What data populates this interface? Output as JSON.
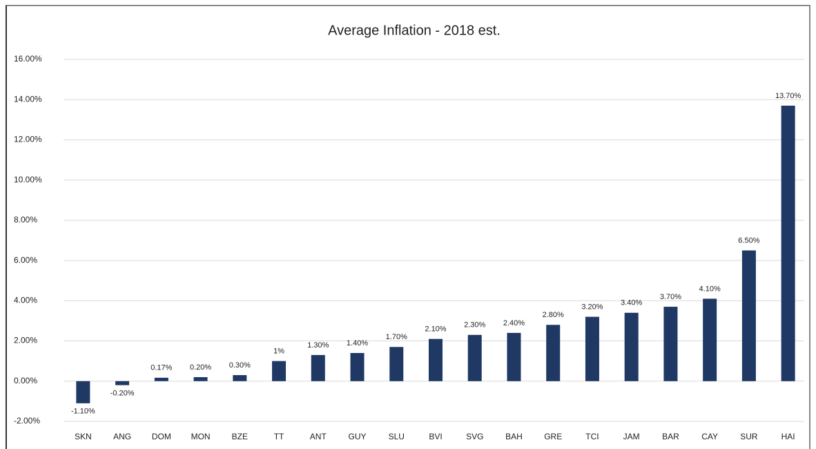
{
  "chart_data": {
    "type": "bar",
    "title": "Average Inflation - 2018 est.",
    "categories": [
      "SKN",
      "ANG",
      "DOM",
      "MON",
      "BZE",
      "TT",
      "ANT",
      "GUY",
      "SLU",
      "BVI",
      "SVG",
      "BAH",
      "GRE",
      "TCI",
      "JAM",
      "BAR",
      "CAY",
      "SUR",
      "HAI"
    ],
    "values": [
      -1.1,
      -0.2,
      0.17,
      0.2,
      0.3,
      1,
      1.3,
      1.4,
      1.7,
      2.1,
      2.3,
      2.4,
      2.8,
      3.2,
      3.4,
      3.7,
      4.1,
      6.5,
      13.7
    ],
    "value_labels": [
      "-1.10%",
      "-0.20%",
      "0.17%",
      "0.20%",
      "0.30%",
      "1%",
      "1.30%",
      "1.40%",
      "1.70%",
      "2.10%",
      "2.30%",
      "2.40%",
      "2.80%",
      "3.20%",
      "3.40%",
      "3.70%",
      "4.10%",
      "6.50%",
      "13.70%"
    ],
    "color": "#1f3864",
    "ylim": [
      -2,
      16
    ],
    "yticks": [
      {
        "value": -2,
        "label": "-2.00%"
      },
      {
        "value": 0,
        "label": "0.00%"
      },
      {
        "value": 2,
        "label": "2.00%"
      },
      {
        "value": 4,
        "label": "4.00%"
      },
      {
        "value": 6,
        "label": "6.00%"
      },
      {
        "value": 8,
        "label": "8.00%"
      },
      {
        "value": 10,
        "label": "10.00%"
      },
      {
        "value": 12,
        "label": "12.00%"
      },
      {
        "value": 14,
        "label": "14.00%"
      },
      {
        "value": 16,
        "label": "16.00%"
      }
    ],
    "grid": true
  }
}
